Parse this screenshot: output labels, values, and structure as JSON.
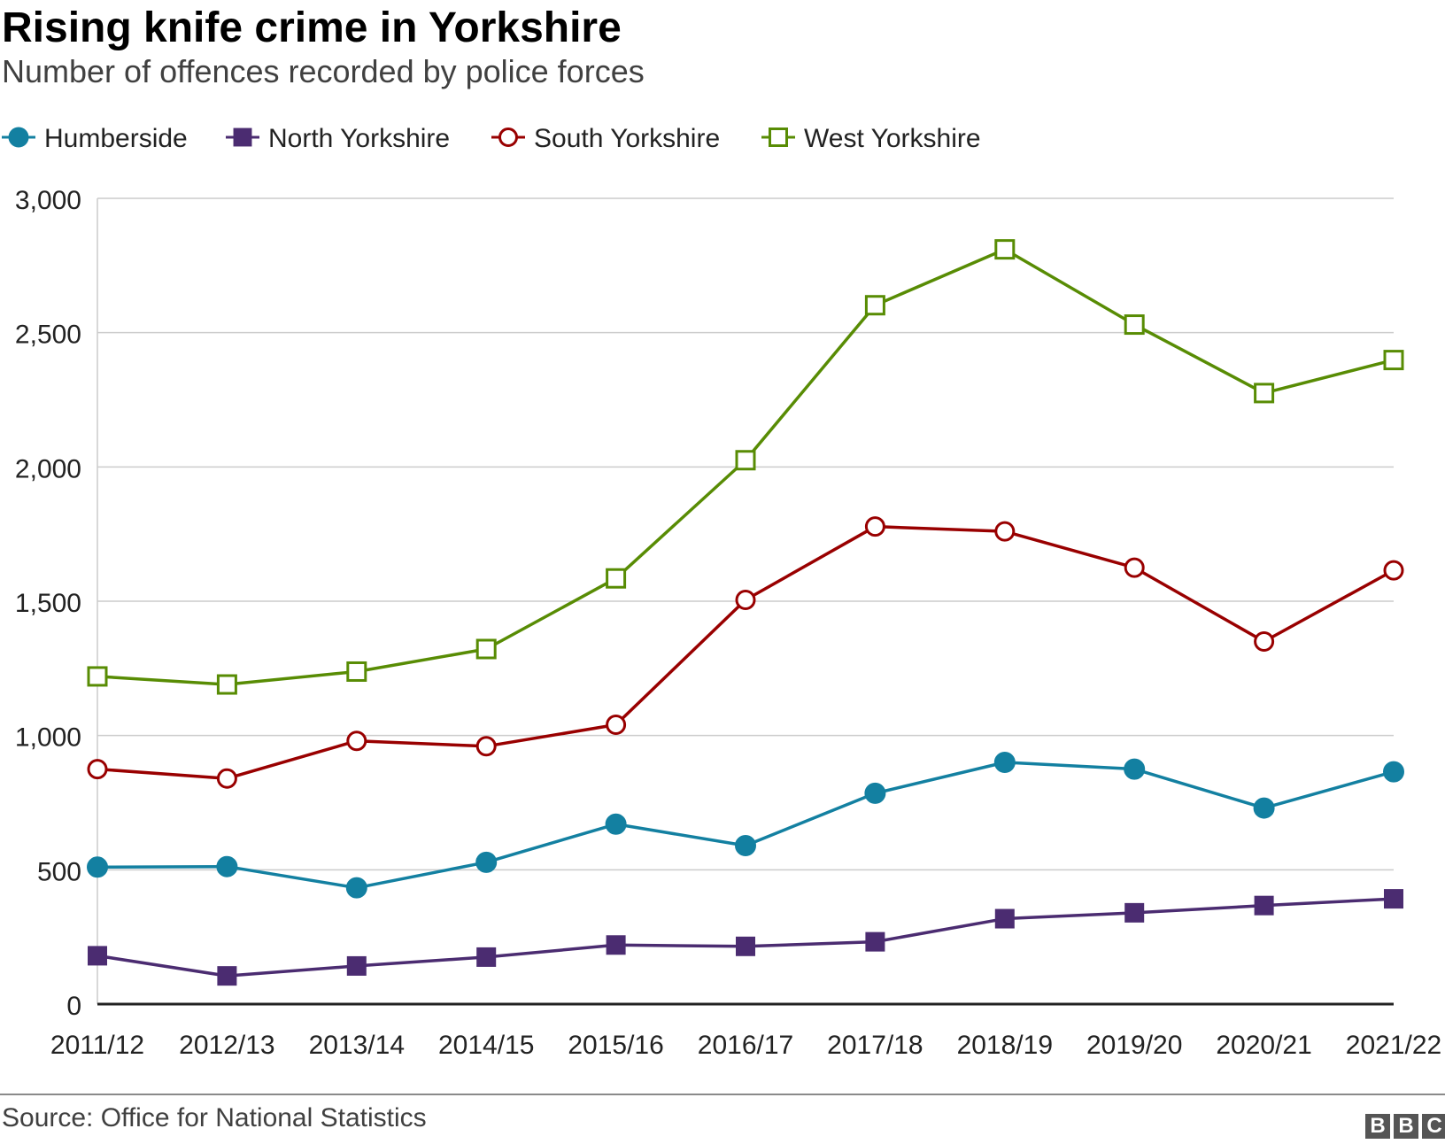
{
  "header": {
    "title": "Rising knife crime in Yorkshire",
    "subtitle": "Number of offences recorded by police forces"
  },
  "footer": {
    "source": "Source: Office for National Statistics",
    "logo": [
      "B",
      "B",
      "C"
    ]
  },
  "chart_data": {
    "type": "line",
    "title": "Rising knife crime in Yorkshire",
    "subtitle": "Number of offences recorded by police forces",
    "xlabel": "",
    "ylabel": "",
    "categories": [
      "2011/12",
      "2012/13",
      "2013/14",
      "2014/15",
      "2015/16",
      "2016/17",
      "2017/18",
      "2018/19",
      "2019/20",
      "2020/21",
      "2021/22"
    ],
    "ylim": [
      0,
      3000
    ],
    "yticks": [
      0,
      500,
      1000,
      1500,
      2000,
      2500,
      3000
    ],
    "ytick_labels": [
      "0",
      "500",
      "1,000",
      "1,500",
      "2,000",
      "2,500",
      "3,000"
    ],
    "grid": true,
    "legend_position": "top-left",
    "series": [
      {
        "name": "Humberside",
        "color": "#1380a1",
        "marker": "filled-circle",
        "values": [
          510,
          512,
          433,
          528,
          670,
          590,
          785,
          900,
          875,
          730,
          865
        ]
      },
      {
        "name": "North Yorkshire",
        "color": "#4b2c71",
        "marker": "filled-square",
        "values": [
          180,
          105,
          142,
          175,
          220,
          215,
          232,
          318,
          340,
          367,
          392
        ]
      },
      {
        "name": "South Yorkshire",
        "color": "#990000",
        "marker": "open-circle",
        "values": [
          875,
          840,
          980,
          960,
          1040,
          1505,
          1778,
          1760,
          1625,
          1350,
          1615
        ]
      },
      {
        "name": "West Yorkshire",
        "color": "#588c04",
        "marker": "open-square",
        "values": [
          1220,
          1190,
          1238,
          1322,
          1585,
          2025,
          2602,
          2810,
          2530,
          2275,
          2398
        ]
      }
    ]
  }
}
